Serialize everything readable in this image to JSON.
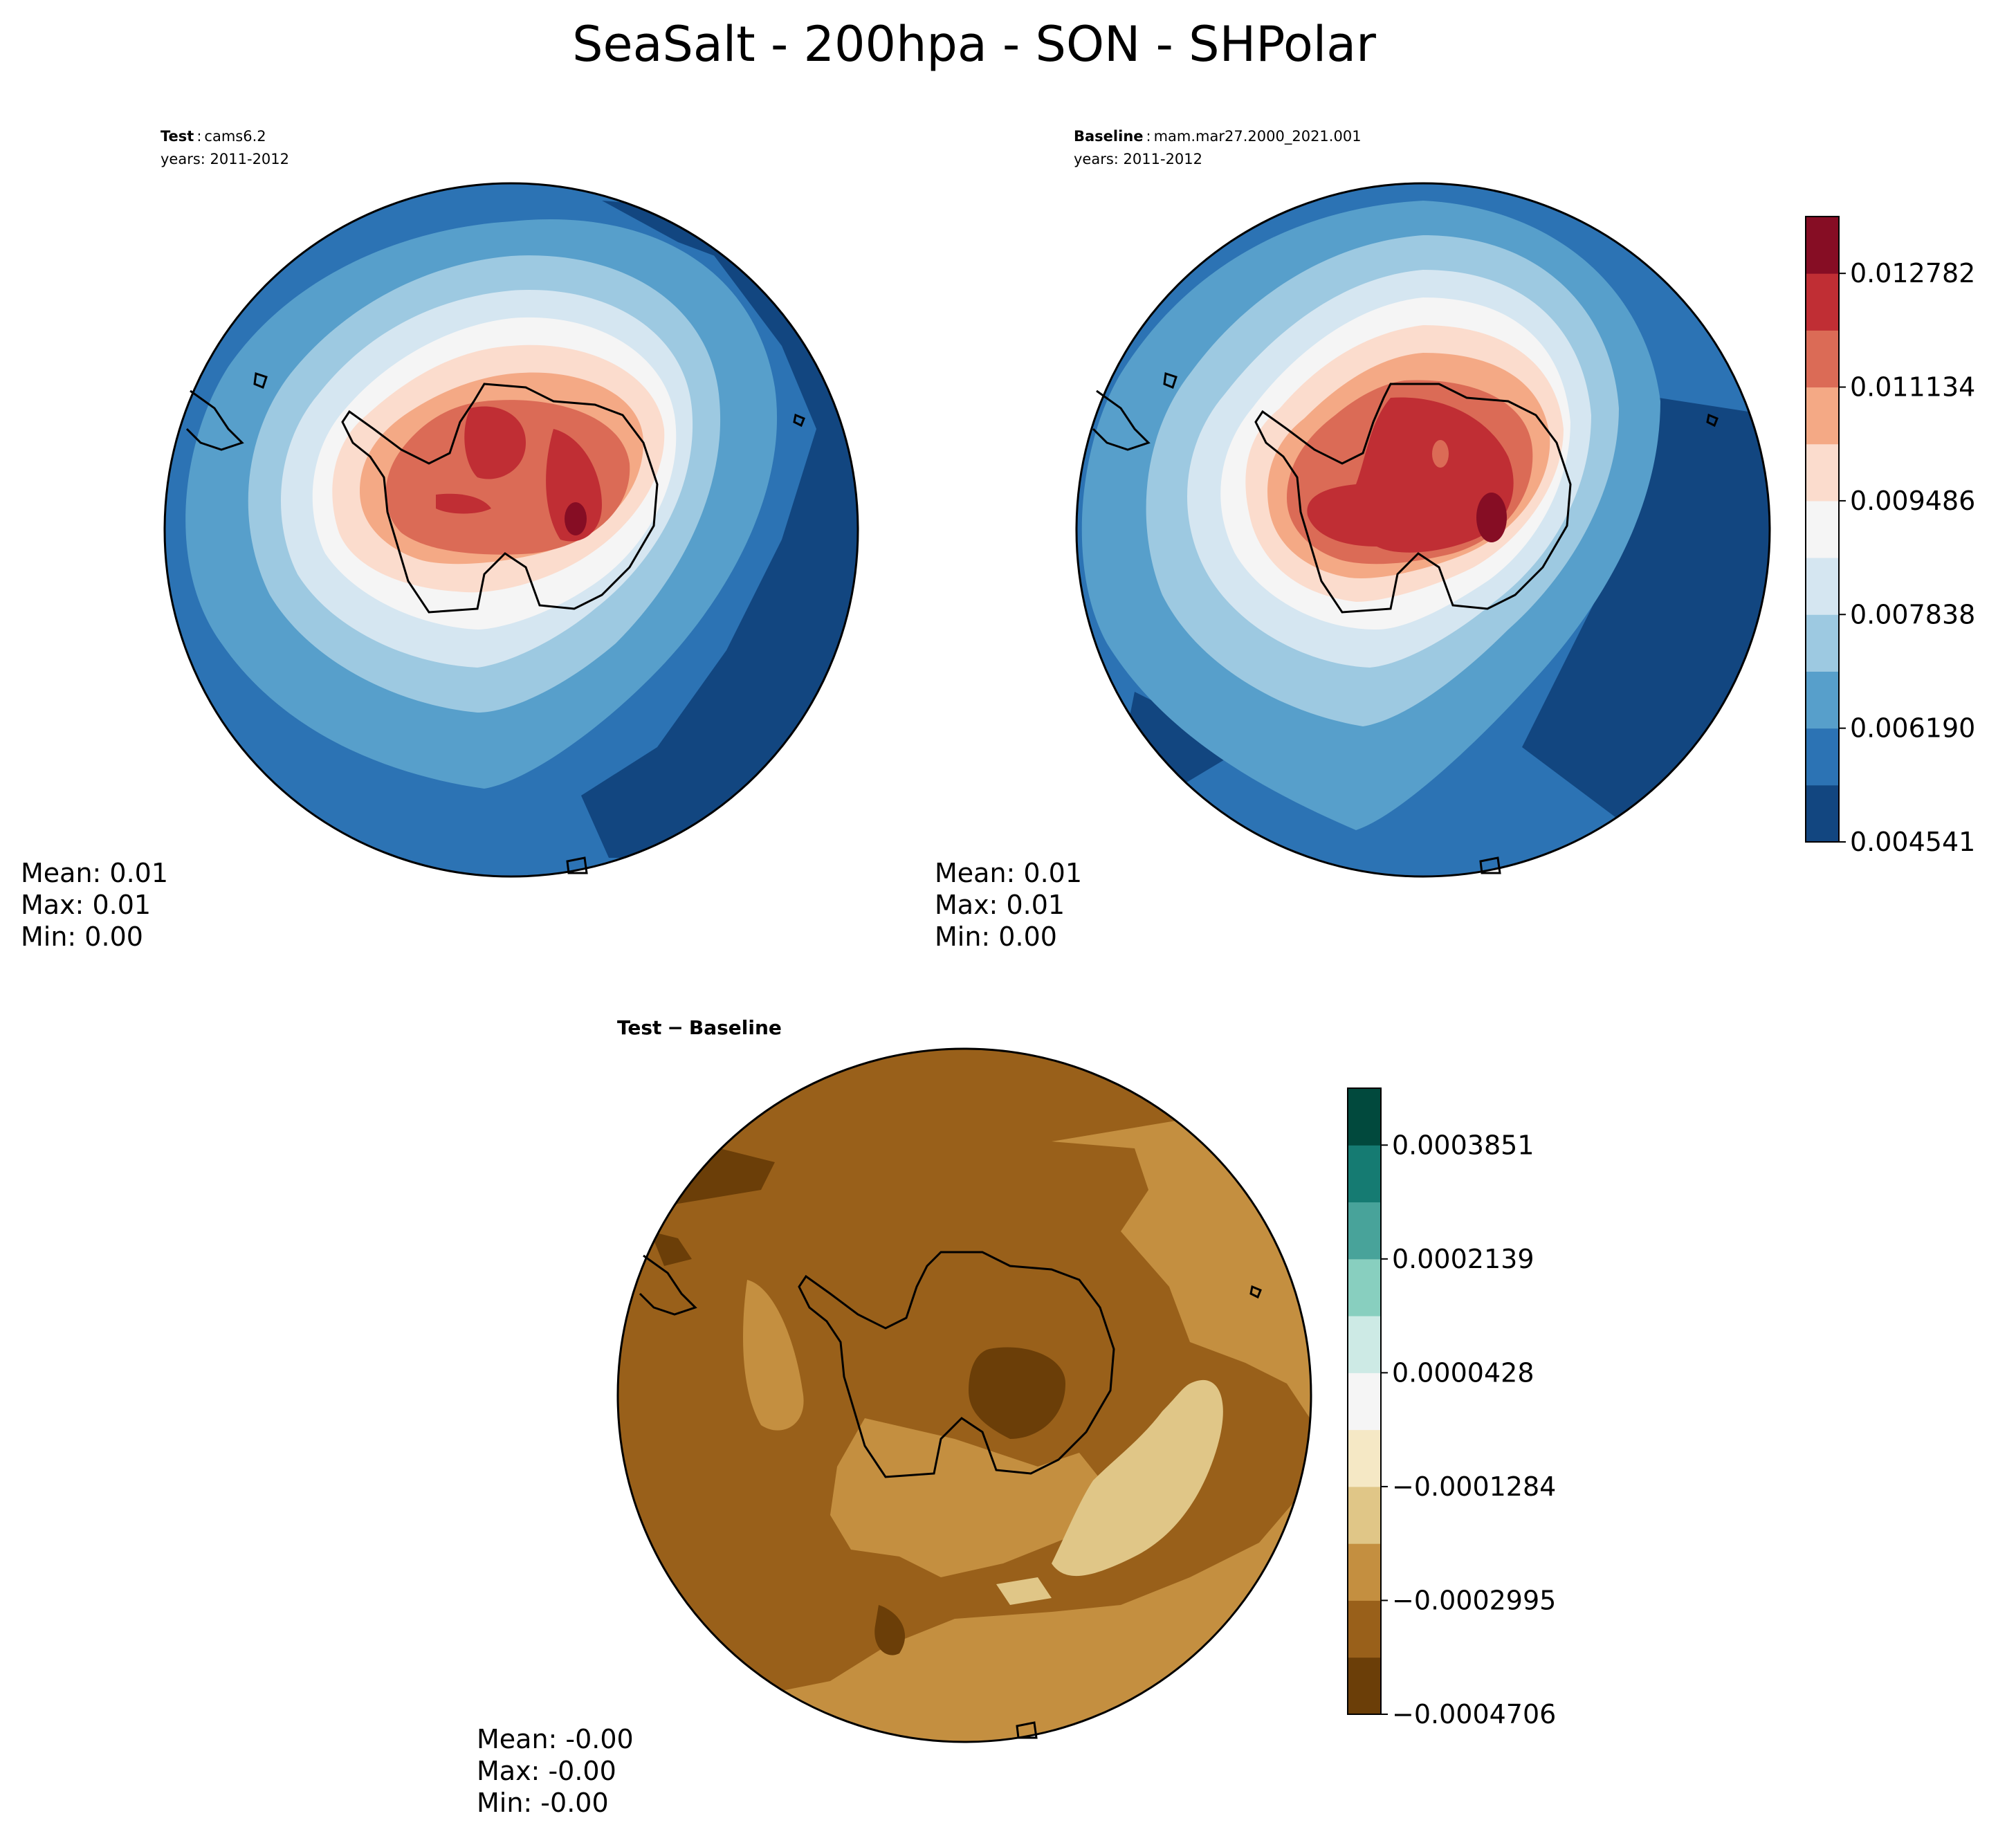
{
  "figure_title": "SeaSalt - 200hpa - SON - SHPolar",
  "test_panel": {
    "label": "Test",
    "case": "cams6.2",
    "years": "years: 2011-2012",
    "stats": [
      "Mean:  0.01",
      "Max:  0.01",
      "Min:  0.00"
    ]
  },
  "baseline_panel": {
    "label": "Baseline",
    "case": "mam.mar27.2000_2021.001",
    "years": "years: 2011-2012",
    "stats": [
      "Mean:  0.01",
      "Max:  0.01",
      "Min:  0.00"
    ]
  },
  "diff_panel": {
    "title_a": "Test",
    "title_sep": "−",
    "title_b": "Baseline",
    "stats": [
      "Mean: -0.00",
      "Max: -0.00",
      "Min: -0.00"
    ]
  },
  "chart_data": [
    {
      "type": "heatmap",
      "name": "test",
      "projection": "south polar stereographic",
      "value_range": [
        0.004541,
        0.013606
      ],
      "colorbar_levels": [
        0.004541,
        0.005365,
        0.00619,
        0.007014,
        0.007838,
        0.008662,
        0.009486,
        0.01031,
        0.011134,
        0.011958,
        0.012782,
        0.013606
      ],
      "colors": [
        "#124680",
        "#2c73b4",
        "#579fcb",
        "#9dc9e1",
        "#d5e6f1",
        "#f5f5f5",
        "#fbdccd",
        "#f4a985",
        "#db6b56",
        "#c02e34",
        "#860d24"
      ]
    },
    {
      "type": "heatmap",
      "name": "baseline",
      "projection": "south polar stereographic",
      "colorbar_ticks": [
        "0.012782",
        "0.011134",
        "0.009486",
        "0.007838",
        "0.006190",
        "0.004541"
      ],
      "colors": [
        "#124680",
        "#2c73b4",
        "#579fcb",
        "#9dc9e1",
        "#d5e6f1",
        "#f5f5f5",
        "#fbdccd",
        "#f4a985",
        "#db6b56",
        "#c02e34",
        "#860d24"
      ]
    },
    {
      "type": "heatmap",
      "name": "test-baseline",
      "projection": "south polar stereographic",
      "colorbar_ticks": [
        "0.0003851",
        "0.0002139",
        "0.0000428",
        "−0.0001284",
        "−0.0002995",
        "−0.0004706"
      ],
      "value_range": [
        -0.0004706,
        0.0004707
      ],
      "colors": [
        "#6b3e08",
        "#99601a",
        "#c48f40",
        "#e0c687",
        "#f5e8c5",
        "#f5f5f5",
        "#cdeae5",
        "#88cfbf",
        "#48a39a",
        "#157b72",
        "#01493d"
      ]
    }
  ]
}
